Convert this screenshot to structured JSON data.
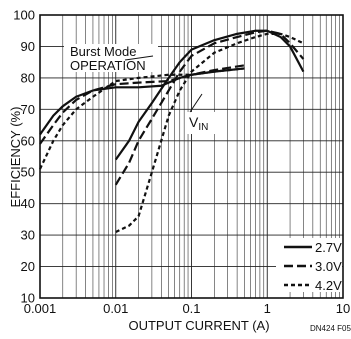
{
  "chart_data": {
    "type": "line",
    "xlabel": "OUTPUT CURRENT (A)",
    "ylabel": "EFFICIENCY (%)",
    "xscale": "log",
    "xlim": [
      0.001,
      10
    ],
    "ylim": [
      10,
      100
    ],
    "xticks": [
      0.001,
      0.01,
      0.1,
      1,
      10
    ],
    "xtick_labels": [
      "0.001",
      "0.01",
      "0.1",
      "1",
      "10"
    ],
    "yticks": [
      10,
      20,
      30,
      40,
      50,
      60,
      70,
      80,
      90,
      100
    ],
    "ytick_labels": [
      "10",
      "20",
      "30",
      "40",
      "50",
      "60",
      "70",
      "80",
      "90",
      "100"
    ],
    "grid": true,
    "legend_position": "bottom-right",
    "annotations": {
      "burst_mode_line1": "Burst Mode",
      "burst_mode_line2": "OPERATION",
      "vin_main": "V",
      "vin_sub": "IN",
      "figure_id": "DN424 F05"
    },
    "series": [
      {
        "name": "2.7V",
        "style": "solid",
        "segments": [
          [
            [
              0.001,
              62
            ],
            [
              0.0015,
              68
            ],
            [
              0.002,
              71
            ],
            [
              0.003,
              74
            ],
            [
              0.005,
              76
            ],
            [
              0.01,
              77
            ],
            [
              0.02,
              77
            ],
            [
              0.04,
              77.5
            ],
            [
              0.07,
              80
            ],
            [
              0.1,
              81
            ],
            [
              0.2,
              82
            ],
            [
              0.5,
              83
            ]
          ],
          [
            [
              0.01,
              54
            ],
            [
              0.015,
              60
            ],
            [
              0.02,
              66
            ],
            [
              0.03,
              72
            ],
            [
              0.05,
              80
            ],
            [
              0.07,
              85
            ],
            [
              0.1,
              89
            ],
            [
              0.2,
              92
            ],
            [
              0.4,
              94
            ],
            [
              0.7,
              95
            ],
            [
              1,
              95
            ],
            [
              1.5,
              93
            ],
            [
              2,
              90
            ],
            [
              3,
              82
            ]
          ]
        ]
      },
      {
        "name": "3.0V",
        "style": "long-dash",
        "segments": [
          [
            [
              0.001,
              59
            ],
            [
              0.0015,
              65
            ],
            [
              0.002,
              69
            ],
            [
              0.003,
              73
            ],
            [
              0.005,
              76
            ],
            [
              0.01,
              78
            ],
            [
              0.02,
              78.5
            ],
            [
              0.05,
              79
            ],
            [
              0.1,
              81
            ],
            [
              0.2,
              82.5
            ],
            [
              0.5,
              84
            ]
          ],
          [
            [
              0.01,
              46
            ],
            [
              0.015,
              53
            ],
            [
              0.02,
              60
            ],
            [
              0.03,
              67
            ],
            [
              0.05,
              76
            ],
            [
              0.07,
              82
            ],
            [
              0.1,
              87
            ],
            [
              0.2,
              91
            ],
            [
              0.4,
              93
            ],
            [
              0.7,
              94.5
            ],
            [
              1,
              95
            ],
            [
              1.5,
              94
            ],
            [
              2,
              91
            ],
            [
              3,
              86
            ]
          ]
        ]
      },
      {
        "name": "4.2V",
        "style": "short-dash",
        "segments": [
          [
            [
              0.001,
              51
            ],
            [
              0.0015,
              60
            ],
            [
              0.002,
              65
            ],
            [
              0.003,
              70
            ],
            [
              0.005,
              74
            ],
            [
              0.01,
              79
            ],
            [
              0.02,
              80
            ],
            [
              0.05,
              81
            ],
            [
              0.1,
              81
            ],
            [
              0.2,
              82
            ],
            [
              0.5,
              83
            ]
          ],
          [
            [
              0.01,
              31
            ],
            [
              0.015,
              33
            ],
            [
              0.02,
              36
            ],
            [
              0.03,
              50
            ],
            [
              0.05,
              68
            ],
            [
              0.07,
              76
            ],
            [
              0.1,
              82
            ],
            [
              0.2,
              88
            ],
            [
              0.4,
              91
            ],
            [
              0.7,
              93
            ],
            [
              1,
              94
            ],
            [
              1.5,
              94
            ],
            [
              2,
              93
            ],
            [
              3,
              91
            ]
          ]
        ]
      }
    ]
  }
}
